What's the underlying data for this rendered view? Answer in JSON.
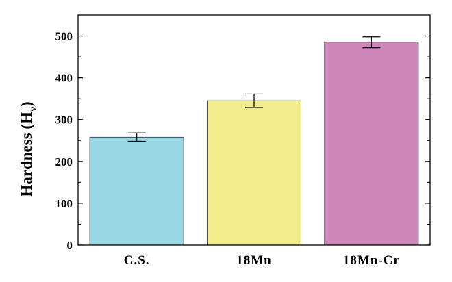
{
  "chart_data": {
    "type": "bar",
    "categories": [
      "C.S.",
      "18Mn",
      "18Mn-Cr"
    ],
    "values": [
      258,
      345,
      485
    ],
    "errors": [
      10,
      16,
      13
    ],
    "colors": [
      "#9ad7e2",
      "#f2ec8b",
      "#cd87bb"
    ],
    "title": "",
    "xlabel": "",
    "ylabel": "Hardness (H",
    "ylabel_subscript": "v",
    "ylabel_close": ")",
    "ylim": [
      0,
      550
    ],
    "yticks": [
      "0",
      "100",
      "200",
      "300",
      "400",
      "500"
    ],
    "ytick_values": [
      0,
      100,
      200,
      300,
      400,
      500
    ],
    "grid": false,
    "legend": "none"
  }
}
